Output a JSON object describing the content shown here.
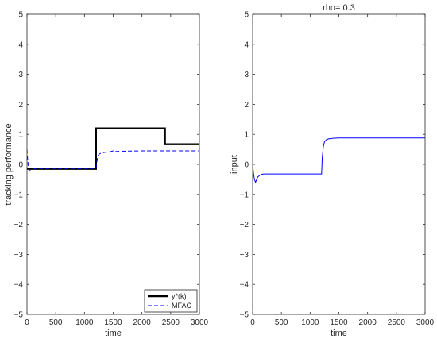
{
  "chart_data": [
    {
      "type": "line",
      "title": "",
      "xlabel": "time",
      "ylabel": "tracking performance",
      "xlim": [
        0,
        3000
      ],
      "ylim": [
        -5,
        5
      ],
      "xticks": [
        0,
        500,
        1000,
        1500,
        2000,
        2500,
        3000
      ],
      "yticks": [
        -5,
        -4,
        -3,
        -2,
        -1,
        0,
        1,
        2,
        3,
        4,
        5
      ],
      "grid": false,
      "legend": {
        "placement": "bottom-right"
      },
      "series": [
        {
          "name": "y*(k)",
          "color": "#000000",
          "style": "solid",
          "width": "thick",
          "x": [
            0,
            1200,
            1200,
            2400,
            2400,
            3000
          ],
          "y": [
            -0.15,
            -0.15,
            1.2,
            1.2,
            0.67,
            0.67
          ]
        },
        {
          "name": "MFAC",
          "color": "#0000ff",
          "style": "dashed",
          "width": "thin",
          "x": [
            0,
            10,
            20,
            40,
            60,
            80,
            100,
            140,
            200,
            400,
            800,
            1200,
            1210,
            1225,
            1240,
            1260,
            1300,
            1350,
            1450,
            1500,
            1520,
            1560,
            1700,
            2000,
            2400,
            3000
          ],
          "y": [
            0.5,
            0.2,
            0.0,
            -0.2,
            -0.22,
            -0.18,
            -0.15,
            -0.14,
            -0.14,
            -0.14,
            -0.14,
            -0.14,
            0.0,
            0.2,
            0.3,
            0.35,
            0.38,
            0.4,
            0.42,
            0.45,
            0.42,
            0.43,
            0.44,
            0.45,
            0.45,
            0.45
          ]
        }
      ]
    },
    {
      "type": "line",
      "title": "rho= 0.3",
      "xlabel": "time",
      "ylabel": "input",
      "xlim": [
        0,
        3000
      ],
      "ylim": [
        -5,
        5
      ],
      "xticks": [
        0,
        500,
        1000,
        1500,
        2000,
        2500,
        3000
      ],
      "yticks": [
        -5,
        -4,
        -3,
        -2,
        -1,
        0,
        1,
        2,
        3,
        4,
        5
      ],
      "grid": false,
      "series": [
        {
          "color": "#0000ff",
          "style": "solid",
          "width": "thin",
          "x": [
            0,
            15,
            30,
            50,
            70,
            90,
            120,
            160,
            200,
            300,
            600,
            1200,
            1210,
            1230,
            1250,
            1280,
            1320,
            1400,
            1500,
            2000,
            3000
          ],
          "y": [
            0.0,
            -0.3,
            -0.5,
            -0.6,
            -0.5,
            -0.42,
            -0.37,
            -0.33,
            -0.32,
            -0.32,
            -0.32,
            -0.32,
            0.2,
            0.6,
            0.75,
            0.82,
            0.85,
            0.87,
            0.88,
            0.88,
            0.88
          ]
        }
      ]
    }
  ]
}
